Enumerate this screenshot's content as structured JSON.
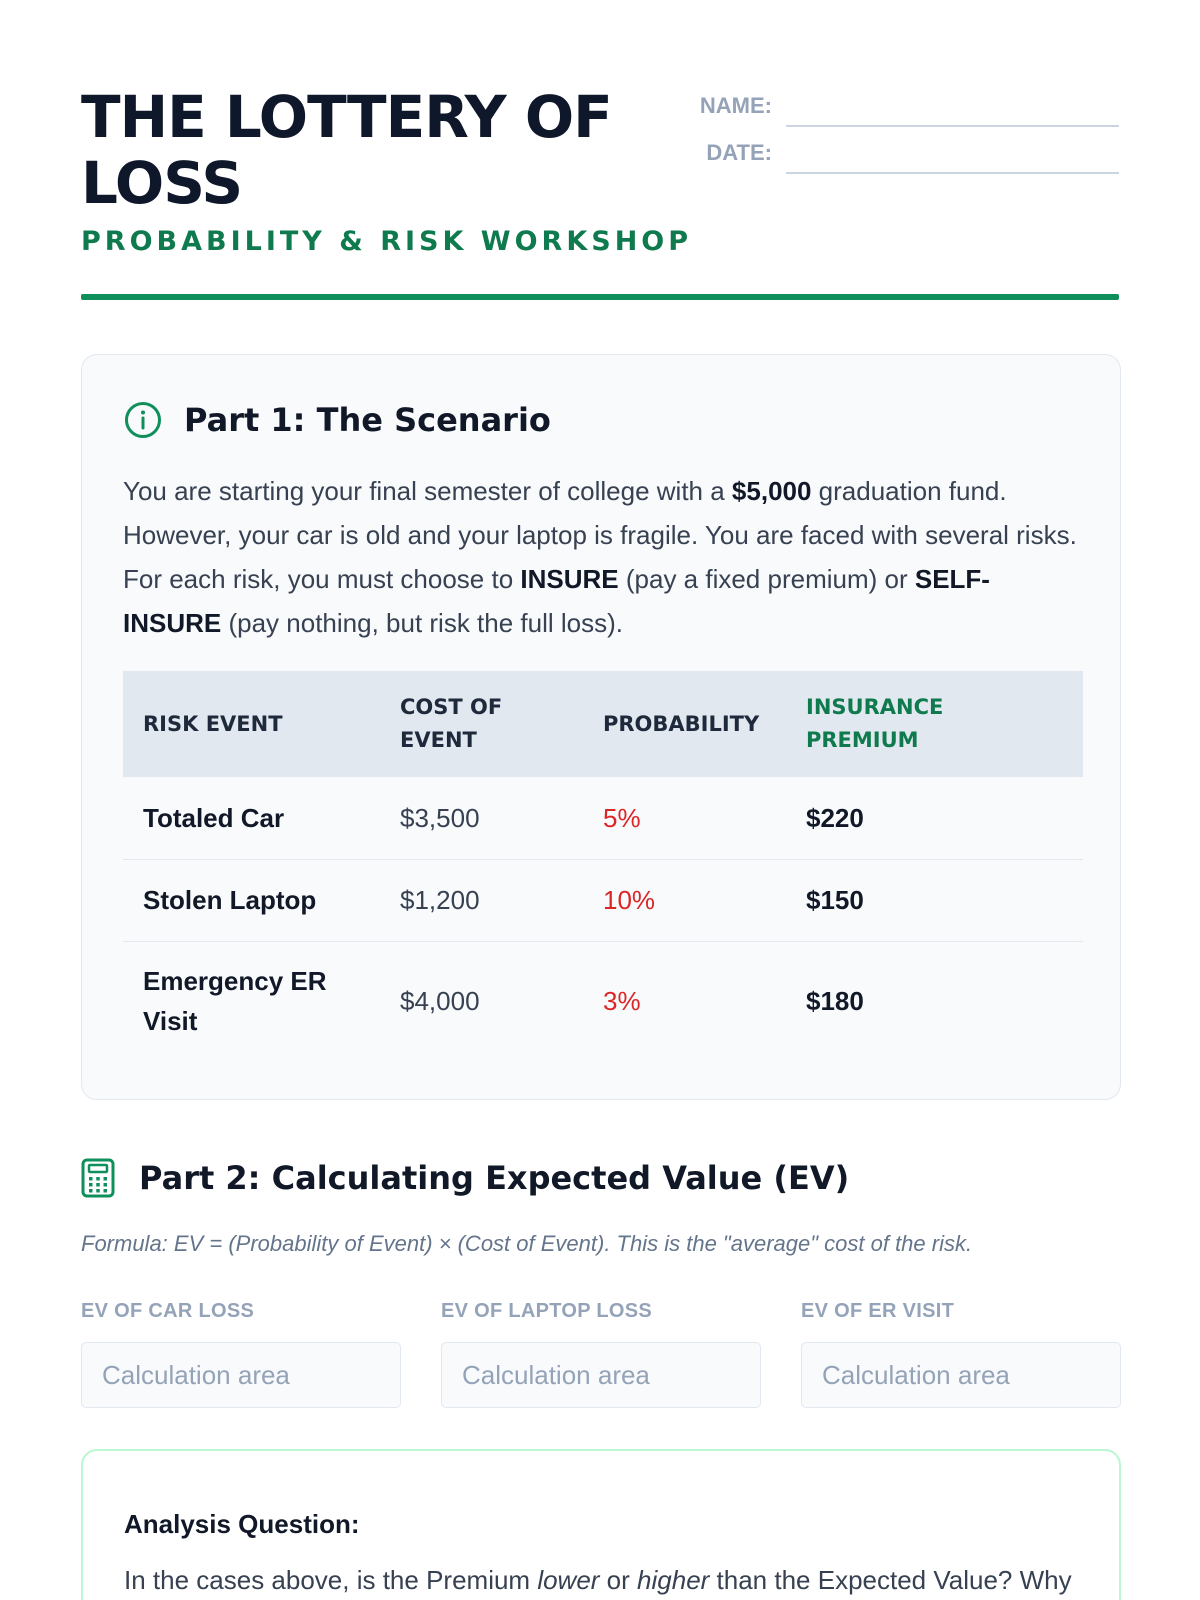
{
  "header": {
    "title": "THE LOTTERY OF LOSS",
    "subtitle": "PROBABILITY & RISK WORKSHOP",
    "name_label": "NAME:",
    "date_label": "DATE:"
  },
  "part1": {
    "title": "Part 1: The Scenario",
    "icon": "info-icon",
    "scenario": {
      "t1": "You are starting your final semester of college with a ",
      "b1": "$5,000",
      "t2": " graduation fund. However, your car is old and your laptop is fragile. You are faced with several risks. For each risk, you must choose to ",
      "b2": "INSURE",
      "t3": " (pay a fixed premium) or ",
      "b3": "SELF-INSURE",
      "t4": " (pay nothing, but risk the full loss)."
    },
    "table": {
      "headers": [
        "RISK EVENT",
        "COST OF EVENT",
        "PROBABILITY",
        "INSURANCE PREMIUM"
      ],
      "rows": [
        {
          "event": "Totaled Car",
          "cost": "$3,500",
          "probability": "5%",
          "premium": "$220"
        },
        {
          "event": "Stolen Laptop",
          "cost": "$1,200",
          "probability": "10%",
          "premium": "$150"
        },
        {
          "event": "Emergency ER Visit",
          "cost": "$4,000",
          "probability": "3%",
          "premium": "$180"
        }
      ]
    }
  },
  "part2": {
    "title": "Part 2: Calculating Expected Value (EV)",
    "icon": "calculator-icon",
    "formula": "Formula: EV = (Probability of Event) × (Cost of Event). This is the \"average\" cost of the risk.",
    "fields": [
      {
        "label": "EV OF CAR LOSS",
        "placeholder": "Calculation area"
      },
      {
        "label": "EV OF LAPTOP LOSS",
        "placeholder": "Calculation area"
      },
      {
        "label": "EV OF ER VISIT",
        "placeholder": "Calculation area"
      }
    ]
  },
  "analysis": {
    "title": "Analysis Question:",
    "t1": "In the cases above, is the Premium ",
    "i1": "lower",
    "t2": " or ",
    "i2": "higher",
    "t3": " than the Expected Value? Why would a rational person pay a premium that is higher than the"
  },
  "colors": {
    "accent": "#0f8f5b",
    "accent_text": "#0f7a4d",
    "probability": "#dc2626",
    "title": "#0f172a"
  }
}
